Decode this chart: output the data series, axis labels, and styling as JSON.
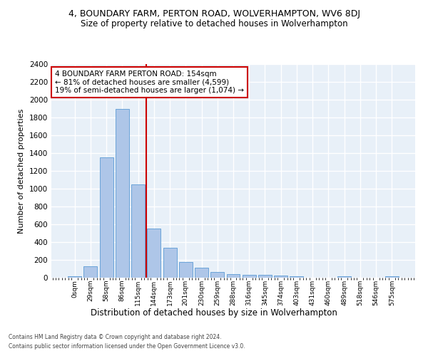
{
  "title": "4, BOUNDARY FARM, PERTON ROAD, WOLVERHAMPTON, WV6 8DJ",
  "subtitle": "Size of property relative to detached houses in Wolverhampton",
  "xlabel": "Distribution of detached houses by size in Wolverhampton",
  "ylabel": "Number of detached properties",
  "bins": [
    "0sqm",
    "29sqm",
    "58sqm",
    "86sqm",
    "115sqm",
    "144sqm",
    "173sqm",
    "201sqm",
    "230sqm",
    "259sqm",
    "288sqm",
    "316sqm",
    "345sqm",
    "374sqm",
    "403sqm",
    "431sqm",
    "460sqm",
    "489sqm",
    "518sqm",
    "546sqm",
    "575sqm"
  ],
  "values": [
    15,
    130,
    1350,
    1900,
    1050,
    550,
    340,
    175,
    115,
    65,
    40,
    35,
    30,
    25,
    20,
    0,
    0,
    20,
    0,
    0,
    15
  ],
  "bar_color": "#aec6e8",
  "bar_edge_color": "#5b9bd5",
  "vline_color": "#cc0000",
  "annotation_text": "4 BOUNDARY FARM PERTON ROAD: 154sqm\n← 81% of detached houses are smaller (4,599)\n19% of semi-detached houses are larger (1,074) →",
  "annotation_box_color": "#ffffff",
  "annotation_box_edge": "#cc0000",
  "bg_color": "#e8f0f8",
  "grid_color": "#ffffff",
  "ylim": [
    0,
    2400
  ],
  "yticks": [
    0,
    200,
    400,
    600,
    800,
    1000,
    1200,
    1400,
    1600,
    1800,
    2000,
    2200,
    2400
  ],
  "footer1": "Contains HM Land Registry data © Crown copyright and database right 2024.",
  "footer2": "Contains public sector information licensed under the Open Government Licence v3.0.",
  "title_fontsize": 9,
  "subtitle_fontsize": 8.5,
  "ylabel_fontsize": 8,
  "xlabel_fontsize": 8.5,
  "ytick_fontsize": 7.5,
  "xtick_fontsize": 6.5,
  "footer_fontsize": 5.5,
  "annot_fontsize": 7.5
}
